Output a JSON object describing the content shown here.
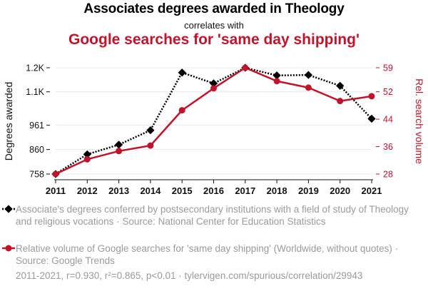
{
  "header": {
    "title": "Associates degrees awarded in Theology",
    "subtitle": "correlates with",
    "title2": "Google searches for 'same day shipping'"
  },
  "chart_data": {
    "type": "line",
    "x": [
      2011,
      2012,
      2013,
      2014,
      2015,
      2016,
      2017,
      2018,
      2019,
      2020,
      2021
    ],
    "series": [
      {
        "name": "Associate's degrees conferred by postsecondary institutions with a field of study of Theology and religious vocations · Source: National Center for Education Statistics",
        "axis": "left",
        "color": "#000000",
        "style": "dotted",
        "marker": "diamond",
        "values": [
          758,
          840,
          880,
          940,
          1180,
          1135,
          1200,
          1168,
          1170,
          1125,
          988
        ]
      },
      {
        "name": "Relative volume of Google searches for 'same day shipping' (Worldwide, without quotes) · Source: Google Trends",
        "axis": "right",
        "color": "#c0142c",
        "style": "solid",
        "marker": "circle",
        "values": [
          28,
          32.3,
          34.7,
          36.3,
          46.6,
          53,
          59,
          55.1,
          53.2,
          49.3,
          50.7
        ]
      }
    ],
    "y_left": {
      "label": "Degrees awarded",
      "ticks": [
        758,
        860,
        961,
        "1.1K",
        "1.2K"
      ],
      "tick_values": [
        758,
        860,
        961,
        1100,
        1200
      ],
      "range": [
        758,
        1200
      ]
    },
    "y_right": {
      "label": "Rel. search volume",
      "ticks": [
        28,
        36,
        44,
        52,
        59
      ],
      "range": [
        28,
        59
      ]
    },
    "grid": true,
    "legend_position": "bottom"
  },
  "legend": {
    "series1_text": "Associate's degrees conferred by postsecondary institutions with a field of study of Theology and religious vocations · Source: National Center for Education Statistics",
    "series2_text": "Relative volume of Google searches for 'same day shipping' (Worldwide, without quotes) · Source: Google Trends"
  },
  "footer": {
    "stats": "2011-2021, r=0.930, r²=0.865, p<0.01 · tylervigen.com/spurious/correlation/29943"
  },
  "colors": {
    "series1": "#000000",
    "series2": "#c0142c",
    "grid": "#e8e8e8"
  }
}
